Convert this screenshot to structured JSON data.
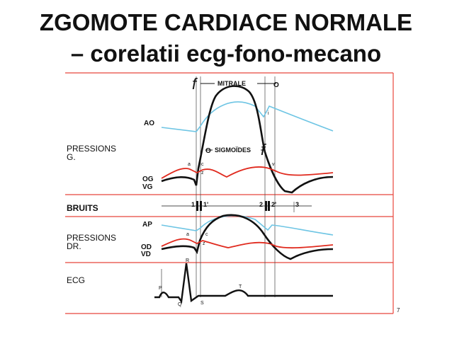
{
  "slide": {
    "title_line1": "ZGOMOTE CARDIACE NORMALE",
    "title_line2": "– corelatii ecg-fono-mecano"
  },
  "diagram": {
    "labels": {
      "mitrale": "MITRALE",
      "sigmoides": "SIGMOÏDES",
      "ao": "AO",
      "pressions_g": "PRESSIONS",
      "pressions_g_sub": "G.",
      "og": "OG",
      "vg": "VG",
      "bruits": "BRUITS",
      "ap": "AP",
      "pressions_d": "PRESSIONS",
      "pressions_d_sub": "DR.",
      "od": "OD",
      "vd": "VD",
      "ecg": "ECG",
      "s1": "1",
      "s1p": "1'",
      "s2": "2",
      "s2p": "2'",
      "s3": "3",
      "f": "f",
      "o": "O",
      "wave_p": "P",
      "wave_q": "Q",
      "wave_r": "R",
      "wave_s": "S",
      "wave_t": "T",
      "mark_a": "a",
      "mark_c": "c",
      "mark_v": "v",
      "mark_i": "i",
      "mark_z": "z",
      "mark_x": "x",
      "page_num": "7"
    },
    "colors": {
      "frame_red": "#e8463c",
      "aorta_blue": "#6ec5e4",
      "atrial_red": "#e02a1e",
      "ink": "#111111"
    }
  }
}
